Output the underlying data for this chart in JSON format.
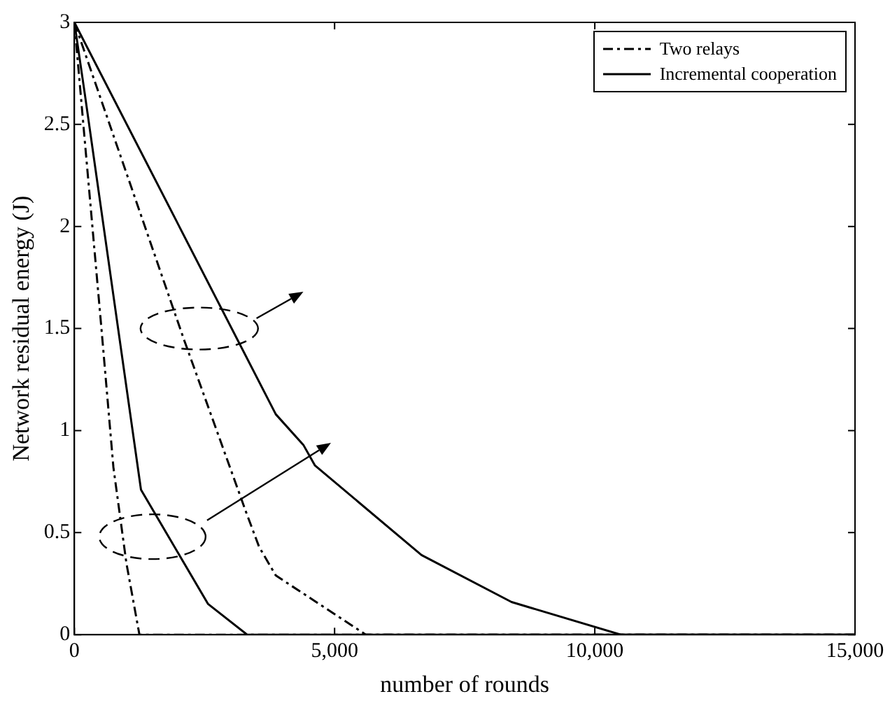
{
  "chart_data": {
    "type": "line",
    "xlabel": "number of rounds",
    "ylabel": "Network residual energy (J)",
    "xlim": [
      0,
      15000
    ],
    "ylim": [
      0,
      3
    ],
    "xticks": [
      0,
      {
        "value": 5000,
        "label": "5,000"
      },
      {
        "value": 10000,
        "label": "10,000"
      },
      {
        "value": 15000,
        "label": "15,000"
      }
    ],
    "yticks": [
      0,
      0.5,
      1,
      1.5,
      2,
      2.5,
      3
    ],
    "grid": false,
    "legend": "top right",
    "marker": "none",
    "series": [
      {
        "name": "Two relays",
        "color": "#000000",
        "line_style": "dashdot",
        "x": [
          0,
          2100,
          3300,
          3550,
          3870,
          5600,
          15000
        ],
        "values": [
          3,
          1.45,
          0.6,
          0.43,
          0.29,
          0,
          0
        ]
      },
      {
        "name": "Incremental cooperation",
        "color": "#000000",
        "line_style": "solid",
        "x": [
          0,
          3870,
          4400,
          4620,
          6670,
          8400,
          10500,
          15000
        ],
        "values": [
          3,
          1.08,
          0.93,
          0.83,
          0.39,
          0.16,
          0,
          0
        ]
      },
      {
        "color": "#000000",
        "line_style": "dashdot",
        "x": [
          0,
          200,
          520,
          750,
          1000,
          1250,
          15000
        ],
        "values": [
          3,
          2.42,
          1.5,
          0.82,
          0.35,
          0,
          0
        ]
      },
      {
        "color": "#000000",
        "line_style": "solid",
        "x": [
          0,
          200,
          1280,
          2570,
          3320,
          15000
        ],
        "values": [
          3,
          2.65,
          0.71,
          0.15,
          0,
          0
        ]
      }
    ]
  }
}
